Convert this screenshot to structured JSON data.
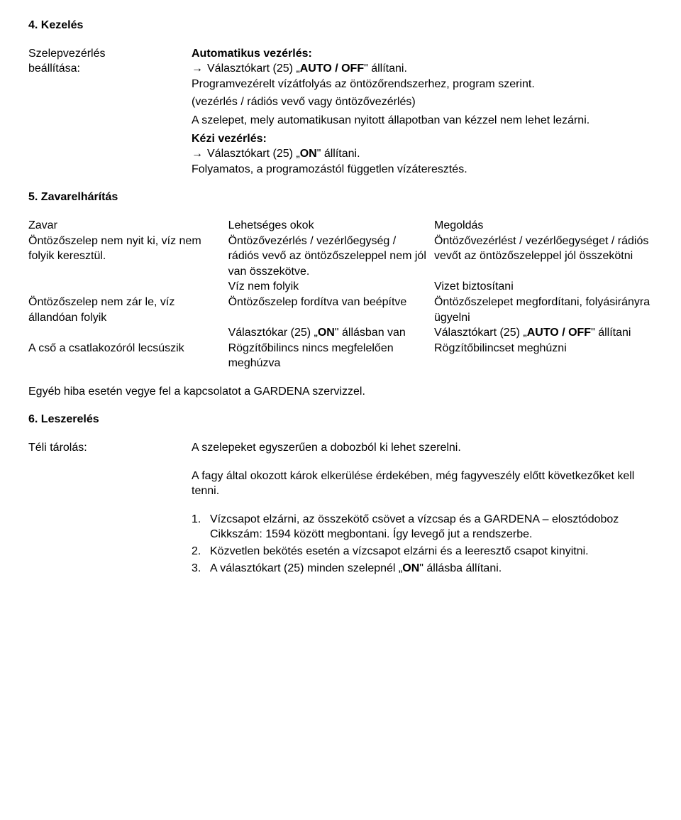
{
  "s4": {
    "title": "4. Kezelés",
    "leftLabel1": "Szelepvezérlés",
    "leftLabel2": "beállítása:",
    "auto_title": "Automatikus vezérlés:",
    "auto_line_pre": "Választókart (25) „",
    "auto_line_bold": "AUTO / OFF",
    "auto_line_post": "\" állítani.",
    "auto_para": "Programvezérelt vízátfolyás az öntözőrendszerhez, program szerint.",
    "auto_note": "(vezérlés / rádiós vevő vagy öntözővezérlés)",
    "auto_warn": "A szelepet, mely automatikusan nyitott állapotban van kézzel nem lehet lezárni.",
    "manual_title": "Kézi vezérlés:",
    "manual_line_pre": "Választókart (25) „",
    "manual_line_bold": "ON",
    "manual_line_post": "\" állítani.",
    "manual_para": "Folyamatos, a programozástól független vízáteresztés."
  },
  "s5": {
    "title": "5. Zavarelhárítás",
    "h1": "Zavar",
    "h2": "Lehetséges okok",
    "h3": "Megoldás",
    "r1c1": "Öntözőszelep nem nyit ki, víz nem folyik keresztül.",
    "r1c2": "Öntözővezérlés / vezérlőegység / rádiós vevő az öntözőszeleppel nem jól van összekötve.",
    "r1c3": "Öntözővezérlést / vezérlőegységet / rádiós vevőt az öntözőszeleppel jól összekötni",
    "r2c2": "Víz nem folyik",
    "r2c3": "Vizet biztosítani",
    "r3c1": "Öntözőszelep nem zár le, víz állandóan folyik",
    "r3c2": "Öntözőszelep fordítva van beépítve",
    "r3c3": "Öntözőszelepet megfordítani, folyásirányra ügyelni",
    "r4c2_pre": "Választókar (25) „",
    "r4c2_bold": "ON",
    "r4c2_post": "\" állásban van",
    "r4c3_pre": "Választókart (25) „",
    "r4c3_bold": "AUTO / OFF",
    "r4c3_post": "\" állítani",
    "r5c1": "A cső a csatlakozóról lecsúszik",
    "r5c2": "Rögzítőbilincs nincs megfelelően meghúzva",
    "r5c3": "Rögzítőbilincset meghúzni",
    "footer": "Egyéb hiba esetén vegye fel a kapcsolatot a GARDENA szervizzel."
  },
  "s6": {
    "title": "6. Leszerelés",
    "leftLabel": "Téli tárolás:",
    "p1": "A szelepeket egyszerűen a dobozból ki lehet szerelni.",
    "p2": "A fagy által okozott károk elkerülése érdekében, még fagyveszély előtt következőket kell tenni.",
    "li1": "Vízcsapot elzárni, az összekötő csövet a vízcsap és a GARDENA – elosztódoboz Cikkszám: 1594 között megbontani. Így levegő jut a rendszerbe.",
    "li2": "Közvetlen bekötés esetén a vízcsapot elzárni és a leeresztő csapot kinyitni.",
    "li3_pre": "A választókart (25) minden szelepnél „",
    "li3_bold": "ON",
    "li3_post": "\" állásba állítani."
  },
  "arrow": "→"
}
